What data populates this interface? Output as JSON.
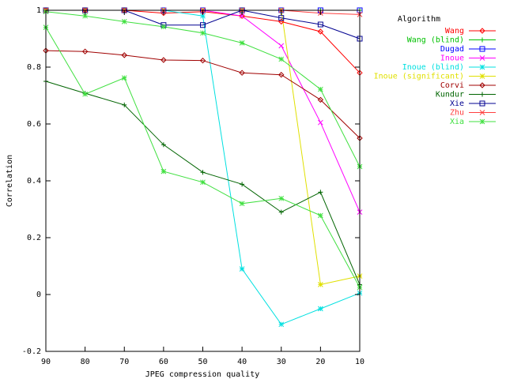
{
  "chart_data": {
    "type": "line",
    "title": "",
    "xlabel": "JPEG compression quality",
    "ylabel": "Correlation",
    "x": [
      90,
      80,
      70,
      60,
      50,
      40,
      30,
      20,
      10
    ],
    "x_ticks": [
      "90",
      "80",
      "70",
      "60",
      "50",
      "40",
      "30",
      "20",
      "10"
    ],
    "y_ticks": [
      "-0.2",
      "0",
      "0.2",
      "0.4",
      "0.6",
      "0.8",
      "1"
    ],
    "xlim": [
      90,
      10
    ],
    "ylim": [
      -0.2,
      1.0
    ],
    "grid": false,
    "legend_title": "Algorithm",
    "legend_position": "top-right-outside",
    "series": [
      {
        "name": "Wang",
        "color": "#ff0000",
        "marker": "diamond",
        "values": [
          1.0,
          1.0,
          1.0,
          0.99,
          0.995,
          0.98,
          0.96,
          0.925,
          0.78
        ]
      },
      {
        "name": "Wang (blind)",
        "color": "#00c000",
        "marker": "plus",
        "values": [
          1.0,
          1.0,
          1.0,
          1.0,
          1.0,
          1.0,
          1.0,
          1.0,
          1.0
        ]
      },
      {
        "name": "Dugad",
        "color": "#0000ff",
        "marker": "square",
        "values": [
          1.0,
          1.0,
          1.0,
          1.0,
          1.0,
          1.0,
          1.0,
          1.0,
          1.0
        ]
      },
      {
        "name": "Inoue",
        "color": "#ff00ff",
        "marker": "cross",
        "values": [
          1.0,
          1.0,
          1.0,
          1.0,
          1.0,
          0.98,
          0.875,
          0.605,
          0.29
        ]
      },
      {
        "name": "Inoue (blind)",
        "color": "#00e0e0",
        "marker": "star",
        "values": [
          1.0,
          1.0,
          1.0,
          1.0,
          0.98,
          0.09,
          -0.105,
          -0.05,
          0.005
        ]
      },
      {
        "name": "Inoue (significant)",
        "color": "#e0e000",
        "marker": "star",
        "values": [
          1.0,
          1.0,
          1.0,
          1.0,
          1.0,
          1.0,
          1.0,
          0.035,
          0.065
        ]
      },
      {
        "name": "Corvi",
        "color": "#a00000",
        "marker": "diamond",
        "values": [
          0.858,
          0.855,
          0.842,
          0.825,
          0.823,
          0.78,
          0.773,
          0.685,
          0.55
        ]
      },
      {
        "name": "Kundur",
        "color": "#006400",
        "marker": "plus",
        "values": [
          0.75,
          0.708,
          0.667,
          0.527,
          0.43,
          0.388,
          0.29,
          0.36,
          0.035
        ]
      },
      {
        "name": "Xie",
        "color": "#000090",
        "marker": "square",
        "values": [
          1.0,
          1.0,
          1.0,
          0.948,
          0.948,
          1.0,
          0.973,
          0.95,
          0.9
        ]
      },
      {
        "name": "Zhu",
        "color": "#ff4040",
        "marker": "cross",
        "values": [
          1.0,
          1.0,
          1.0,
          1.0,
          1.0,
          1.0,
          1.0,
          0.99,
          0.985
        ]
      },
      {
        "name": "Xia",
        "color": "#40e040",
        "marker": "star",
        "values": [
          0.94,
          0.705,
          0.762,
          0.433,
          0.395,
          0.32,
          0.338,
          0.278,
          0.025
        ]
      },
      {
        "name": "",
        "color": "#40e040",
        "marker": "star",
        "legend": false,
        "values": [
          0.995,
          0.98,
          0.96,
          0.942,
          0.92,
          0.885,
          0.828,
          0.722,
          0.45
        ]
      }
    ]
  }
}
